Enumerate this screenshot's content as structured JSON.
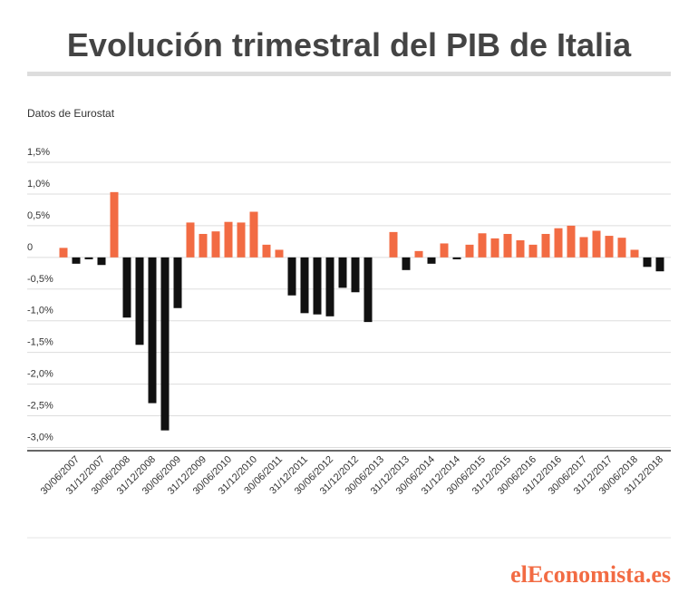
{
  "chart_data": {
    "type": "bar",
    "title": "Evolución trimestral del PIB de Italia",
    "subtitle": "Datos de Eurostat",
    "source": "elEconomista.es",
    "categories": [
      null,
      "30/06/2007",
      null,
      "31/12/2007",
      null,
      "30/06/2008",
      null,
      "31/12/2008",
      null,
      "30/06/2009",
      null,
      "31/12/2009",
      null,
      "30/06/2010",
      null,
      "31/12/2010",
      null,
      "30/06/2011",
      null,
      "31/12/2011",
      null,
      "30/06/2012",
      null,
      "31/12/2012",
      null,
      "30/06/2013",
      null,
      "31/12/2013",
      null,
      "30/06/2014",
      null,
      "31/12/2014",
      null,
      "30/06/2015",
      null,
      "31/12/2015",
      null,
      "30/06/2016",
      null,
      "31/12/2016",
      null,
      "30/06/2017",
      null,
      "31/12/2017",
      null,
      "30/06/2018",
      null,
      "31/12/2018"
    ],
    "values": [
      0.15,
      -0.1,
      -0.03,
      -0.12,
      1.03,
      -0.95,
      -1.38,
      -2.3,
      -2.73,
      -0.8,
      0.55,
      0.37,
      0.41,
      0.56,
      0.55,
      0.72,
      0.2,
      0.12,
      -0.6,
      -0.88,
      -0.9,
      -0.93,
      -0.48,
      -0.55,
      -1.02,
      0,
      0.4,
      -0.2,
      0.1,
      -0.1,
      0.22,
      -0.03,
      0.2,
      0.38,
      0.3,
      0.37,
      0.27,
      0.2,
      0.37,
      0.46,
      0.5,
      0.32,
      0.42,
      0.34,
      0.31,
      0.12,
      -0.15,
      -0.22
    ],
    "positive_color": "#f26b43",
    "negative_color": "#111111",
    "ylim": [
      -3.05,
      1.5
    ],
    "yticks": [
      {
        "value": 1.5,
        "label": "1,5%"
      },
      {
        "value": 1.0,
        "label": "1,0%"
      },
      {
        "value": 0.5,
        "label": "0,5%"
      },
      0,
      {
        "value": -0.5,
        "label": "-0,5%"
      },
      {
        "value": -1.0,
        "label": "-1,0%"
      },
      {
        "value": -1.5,
        "label": "-1,5%"
      },
      {
        "value": -2.0,
        "label": "-2,0%"
      },
      {
        "value": -2.5,
        "label": "-2,5%"
      },
      {
        "value": -3.0,
        "label": "-3,0%"
      }
    ],
    "grid": true
  }
}
